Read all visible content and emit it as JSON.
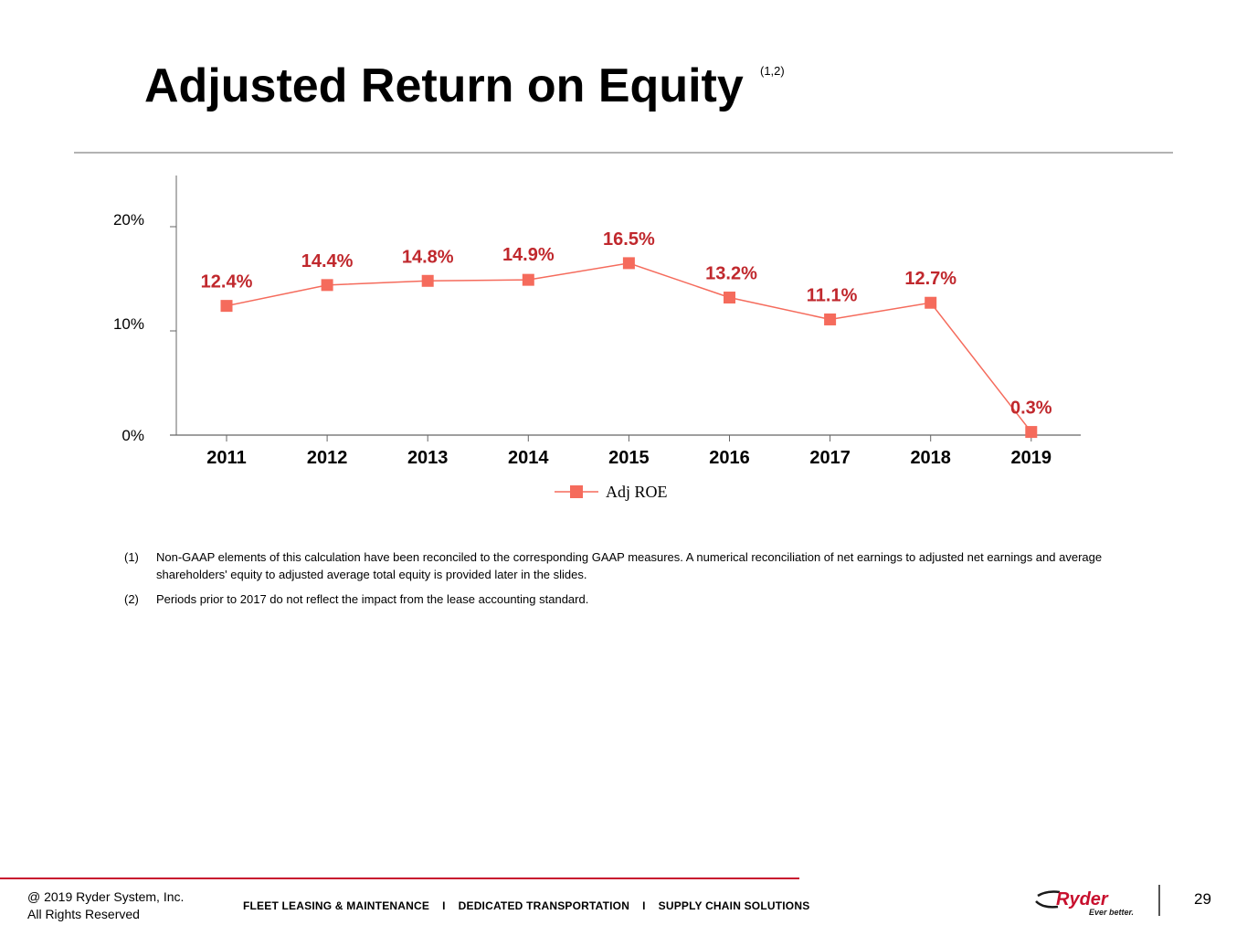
{
  "slide": {
    "title": "Adjusted Return on Equity",
    "title_note": "(1,2)",
    "accent_color": "#c8102e"
  },
  "chart_data": {
    "type": "line",
    "categories": [
      "2011",
      "2012",
      "2013",
      "2014",
      "2015",
      "2016",
      "2017",
      "2018",
      "2019"
    ],
    "series": [
      {
        "name": "Adj ROE",
        "values": [
          12.4,
          14.4,
          14.8,
          14.9,
          16.5,
          13.2,
          11.1,
          12.7,
          0.3
        ],
        "labels": [
          "12.4%",
          "14.4%",
          "14.8%",
          "14.9%",
          "16.5%",
          "13.2%",
          "11.1%",
          "12.7%",
          "0.3%"
        ],
        "color": "#f56b5c",
        "label_color": "#c0282d",
        "marker": "square"
      }
    ],
    "y_ticks": [
      0,
      10,
      20
    ],
    "y_tick_labels": [
      "0%",
      "10%",
      "20%"
    ],
    "ylim": [
      0,
      20
    ],
    "grid": false,
    "legend_position": "bottom-center"
  },
  "footnotes": [
    {
      "num": "(1)",
      "text": "Non-GAAP elements of this calculation have been reconciled to the corresponding GAAP measures. A numerical reconciliation of net earnings to adjusted net earnings and average shareholders' equity to adjusted average total equity is provided later in the slides."
    },
    {
      "num": "(2)",
      "text": "Periods prior to 2017 do not reflect the impact from the lease accounting standard."
    }
  ],
  "footer": {
    "copyright_line1": "@ 2019 Ryder System, Inc.",
    "copyright_line2": "All Rights Reserved",
    "tagline_1": "FLEET LEASING & MAINTENANCE",
    "tagline_2": "DEDICATED TRANSPORTATION",
    "tagline_3": "SUPPLY CHAIN SOLUTIONS",
    "separator": "I",
    "logo_text": "Ryder",
    "logo_slogan": "Ever better.",
    "page_number": "29"
  }
}
